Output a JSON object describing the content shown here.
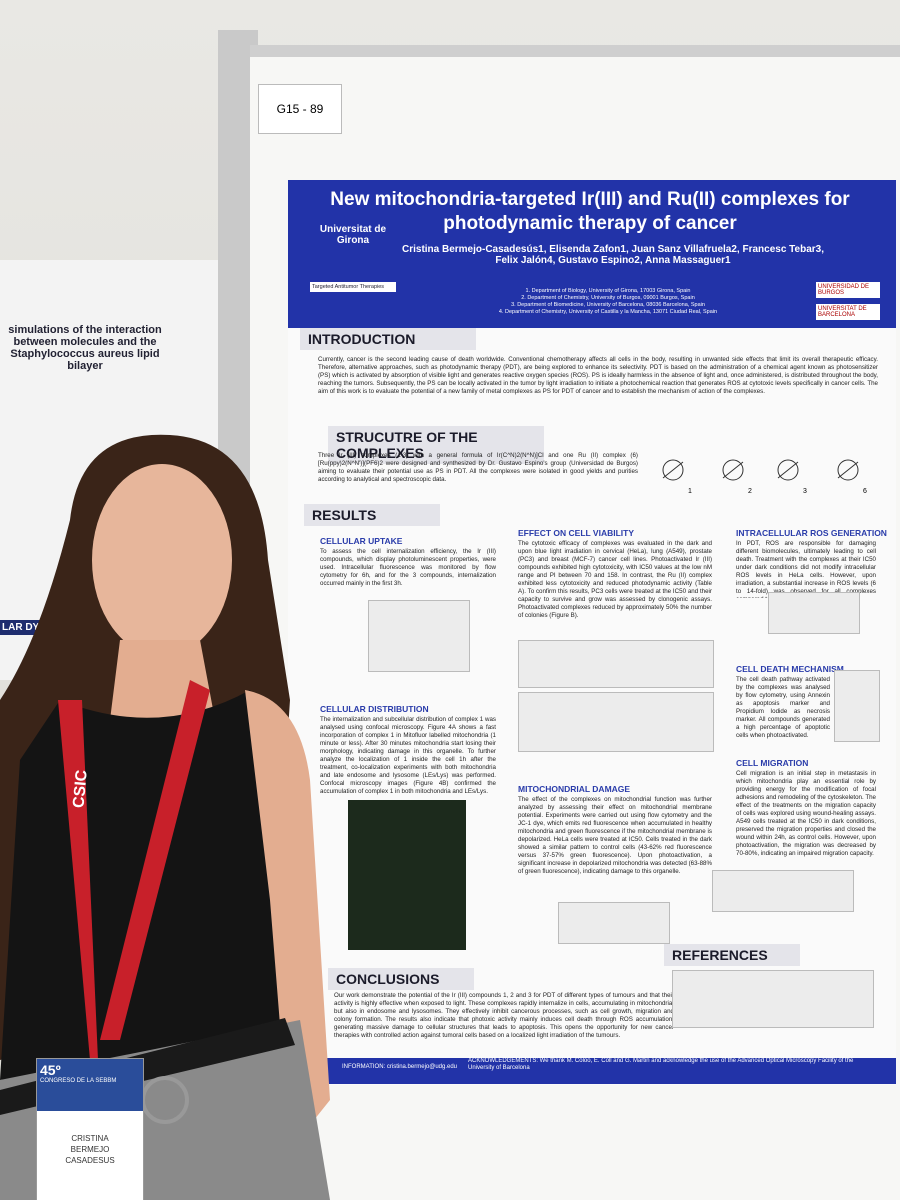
{
  "board_label": "G15 - 89",
  "side_poster": {
    "title": "simulations of the interaction between molecules and the Staphylococcus aureus lipid bilayer",
    "heading": "LAR DYN"
  },
  "poster": {
    "title": "New mitochondria-targeted Ir(III) and Ru(II) complexes for photodynamic therapy of cancer",
    "authors": "Cristina Bermejo-Casadesús1, Elisenda Zafon1, Juan Sanz Villafruela2, Francesc Tebar3, Felix Jalón4, Gustavo Espino2, Anna Massaguer1",
    "affiliations": [
      "1. Department of Biology, University of Girona, 17003 Girona, Spain",
      "2. Department of Chemistry, University of Burgos, 09001 Burgos, Spain",
      "3. Department of Biomedicine, University of Barcelona, 08036 Barcelona, Spain",
      "4. Department of Chemistry, University of Castilla y la Mancha, 13071 Ciudad Real, Spain"
    ],
    "logos": [
      "Universitat de Girona",
      "Targeted Antitumor Therapies",
      "UNIVERSIDAD DE BURGOS",
      "UNIVERSITAT DE BARCELONA"
    ],
    "introduction": {
      "heading": "INTRODUCTION",
      "text": "Currently, cancer is the second leading cause of death worldwide. Conventional chemotherapy affects all cells in the body, resulting in unwanted side effects that limit its overall therapeutic efficacy. Therefore, alternative approaches, such as photodynamic therapy (PDT), are being explored to enhance its selectivity. PDT is based on the administration of a chemical agent known as photosensitizer (PS) which is activated by absorption of visible light and generates reactive oxygen species (ROS). PS is ideally harmless in the absence of light and, once administered, is distributed throughout the body, reaching the tumors. Subsequently, the PS can be locally activated in the tumor by light irradiation to initiate a photochemical reaction that generates ROS at cytotoxic levels specifically in cancer cells. The aim of this work is to evaluate the potential of a new family of metal complexes as PS for PDT of cancer and to establish the mechanism of action of the complexes."
    },
    "structure": {
      "heading": "STRUCUTRE OF THE COMPLEXES",
      "text": "Three Ir (III) complexes (1-3) with a general formula of Ir(C^N)2(N^N)]Cl and one Ru (II) complex (6) [Ru(ppy)2(N^N')](PF6)2 were designed and synthesized by Dr. Gustavo Espino's group (Universidad de Burgos) aiming to evaluate their potential use as PS in PDT. All the complexes were isolated in good yields and purities according to analytical and spectroscopic data.",
      "labels": [
        "1",
        "2",
        "3",
        "6"
      ]
    },
    "results": {
      "heading": "RESULTS",
      "blocks": [
        {
          "heading": "CELLULAR UPTAKE",
          "text": "To assess the cell internalization efficiency, the Ir (III) compounds, which display photoluminescent properties, were used. Intracellular fluorescence was monitored by flow cytometry for 6h, and for the 3 compounds, internalization occurred mainly in the first 3h."
        },
        {
          "heading": "CELLULAR DISTRIBUTION",
          "text": "The internalization and subcellular distribution of complex 1 was analysed using confocal microscopy. Figure 4A shows a fast incorporation of complex 1 in Mitofluor labelled mitochondria (1 minute or less). After 30 minutes mitochondria start losing their morphology, indicating damage in this organelle. To further analyze the localization of 1 inside the cell 1h after the treatment, co-localization experiments with both mitochondria and late endosome and lysosome (LEs/Lys) was performed. Confocal microscopy images (Figure 4B) confirmed the accumulation of complex 1 in both mitochondria and LEs/Lys."
        },
        {
          "heading": "EFFECT ON CELL VIABILITY",
          "text": "The cytotoxic efficacy of complexes was evaluated in the dark and upon blue light irradiation in cervical (HeLa), lung (A549), prostate (PC3) and breast (MCF-7) cancer cell lines. Photoactivated Ir (III) compounds exhibited high cytotoxicity, with IC50 values at the low nM range and PI between 70 and 158. In contrast, the Ru (II) complex exhibited less cytotoxicity and reduced photodynamic activity (Table A). To confirm this results, PC3 cells were treated at the IC50 and their capacity to survive and grow was assessed by clonogenic assays. Photoactivated complexes reduced by approximately 50% the number of colonies (Figure B)."
        },
        {
          "heading": "MITOCHONDRIAL DAMAGE",
          "text": "The effect of the complexes on mitochondrial function was further analyzed by assessing their effect on mitochondrial membrane potential. Experiments were carried out using flow cytometry and the JC-1 dye, which emits red fluorescence when accumulated in healthy mitochondria and green fluorescence if the mitochondrial membrane is depolarized. HeLa cells were treated at IC50. Cells treated in the dark showed a similar pattern to control cells (43-62% red fluorescence versus 37-57% green fluorescence). Upon photoactivation, a significant increase in depolarized mitochondria was detected (63-88% of green fluorescence), indicating damage to this organelle."
        },
        {
          "heading": "INTRACELLULAR ROS GENERATION",
          "text": "In PDT, ROS are responsible for damaging different biomolecules, ultimately leading to cell death. Treatment with the complexes at their IC50 under dark conditions did not modify intracellular ROS levels in HeLa cells. However, upon irradiation, a substantial increase in ROS levels (6 to 14-fold) was observed for all complexes compared to control cells."
        },
        {
          "heading": "CELL DEATH MECHANISM",
          "text": "The cell death pathway activated by the complexes was analysed by flow cytometry, using Annexin as apoptosis marker and Propidium Iodide as necrosis marker. All compounds generated a high percentage of apoptotic cells when photoactivated."
        },
        {
          "heading": "CELL MIGRATION",
          "text": "Cell migration is an initial step in metastasis in which mitochondria play an essential role by providing energy for the modification of focal adhesions and remodeling of the cytoskeleton. The effect of the treatments on the migration capacity of cells was explored using wound-healing assays. A549 cells treated at the IC50 in dark conditions, preserved the migration properties and closed the wound within 24h, as control cells. However, upon photoactivation, the migration was decreased by 70-80%, indicating an impaired migration capacity."
        }
      ]
    },
    "conclusions": {
      "heading": "CONCLUSIONS",
      "text": "Our work demonstrate the potential of the Ir (III) compounds 1, 2 and 3 for PDT of different types of tumours and that their activity is highly effective when exposed to light. These complexes rapidly internalize in cells, accumulating in mitochondria, but also in endosome and lysosomes. They effectively inhibit cancerous processes, such as cell growth, migration and colony formation. The results also indicate that photoxic activity mainly induces cell death through ROS accumulation, generating massive damage to cellular structures that leads to apoptosis. This opens the opportunity for new cancer therapies with controlled action against tumoral cells based on a localized light irradiation of the tumours."
    },
    "references": {
      "heading": "REFERENCES"
    },
    "footer": {
      "contact": "INFORMATION: cristina.bermejo@udg.edu",
      "acknowledgements": "ACKNOWLEDGEMENTS: We thank M. Coloo, E. Coll and G. Martin and acknowledge the use of the Advanced Optical Microscopy Facility of the University of Barcelona"
    }
  },
  "lanyard": "CSIC",
  "badge": {
    "number": "45º",
    "event": "CONGRESO DE LA SEBBM",
    "name": [
      "CRISTINA",
      "BERMEJO",
      "CASADESUS"
    ]
  }
}
